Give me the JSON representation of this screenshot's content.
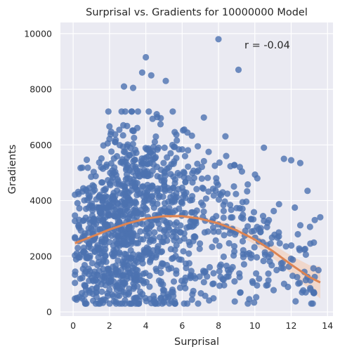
{
  "chart_data": {
    "type": "scatter",
    "title": "Surprisal vs. Gradients for 10000000 Model",
    "xlabel": "Surprisal",
    "ylabel": "Gradients",
    "annotation": "r = -0.04",
    "xlim": [
      -0.7,
      14.3
    ],
    "ylim": [
      -150,
      10400
    ],
    "xticks": [
      0,
      2,
      4,
      6,
      8,
      10,
      12,
      14
    ],
    "yticks": [
      0,
      2000,
      4000,
      6000,
      8000,
      10000
    ],
    "grid": true,
    "background": "#eaeaf2",
    "point_color": "#4c72b0",
    "fit_color": "#dd8452",
    "band_color": "#f3c9b1",
    "fit_type": "quadratic regression with confidence band",
    "fit_curve": [
      {
        "x": 0.1,
        "y": 2470,
        "lo": 2360,
        "hi": 2580
      },
      {
        "x": 1.0,
        "y": 2700,
        "lo": 2610,
        "hi": 2790
      },
      {
        "x": 2.0,
        "y": 2960,
        "lo": 2880,
        "hi": 3040
      },
      {
        "x": 3.0,
        "y": 3180,
        "lo": 3110,
        "hi": 3250
      },
      {
        "x": 4.0,
        "y": 3350,
        "lo": 3280,
        "hi": 3420
      },
      {
        "x": 5.0,
        "y": 3440,
        "lo": 3370,
        "hi": 3510
      },
      {
        "x": 6.0,
        "y": 3440,
        "lo": 3370,
        "hi": 3510
      },
      {
        "x": 7.0,
        "y": 3350,
        "lo": 3270,
        "hi": 3430
      },
      {
        "x": 8.0,
        "y": 3180,
        "lo": 3080,
        "hi": 3280
      },
      {
        "x": 9.0,
        "y": 2930,
        "lo": 2800,
        "hi": 3060
      },
      {
        "x": 10.0,
        "y": 2600,
        "lo": 2420,
        "hi": 2780
      },
      {
        "x": 11.0,
        "y": 2180,
        "lo": 1940,
        "hi": 2420
      },
      {
        "x": 12.0,
        "y": 1700,
        "lo": 1380,
        "hi": 2020
      },
      {
        "x": 13.0,
        "y": 1250,
        "lo": 820,
        "hi": 1680
      },
      {
        "x": 13.6,
        "y": 1060,
        "lo": 480,
        "hi": 1640
      }
    ],
    "notable_points": [
      {
        "x": 8.0,
        "y": 9800
      },
      {
        "x": 4.0,
        "y": 9150
      },
      {
        "x": 9.1,
        "y": 8700
      },
      {
        "x": 3.8,
        "y": 8600
      },
      {
        "x": 4.3,
        "y": 8500
      },
      {
        "x": 2.8,
        "y": 8100
      },
      {
        "x": 3.3,
        "y": 8050
      },
      {
        "x": 5.1,
        "y": 8300
      },
      {
        "x": 13.5,
        "y": 1500
      },
      {
        "x": 13.6,
        "y": 3400
      },
      {
        "x": 13.3,
        "y": 3300
      },
      {
        "x": 12.9,
        "y": 4350
      },
      {
        "x": 12.0,
        "y": 5450
      },
      {
        "x": 12.5,
        "y": 5350
      },
      {
        "x": 11.6,
        "y": 5500
      },
      {
        "x": 10.5,
        "y": 5900
      },
      {
        "x": 12.2,
        "y": 3750
      },
      {
        "x": 12.8,
        "y": 700
      },
      {
        "x": 12.6,
        "y": 700
      },
      {
        "x": 0.2,
        "y": 500
      },
      {
        "x": 1.1,
        "y": 400
      },
      {
        "x": 0.2,
        "y": 2100
      }
    ],
    "seed": 42
  }
}
